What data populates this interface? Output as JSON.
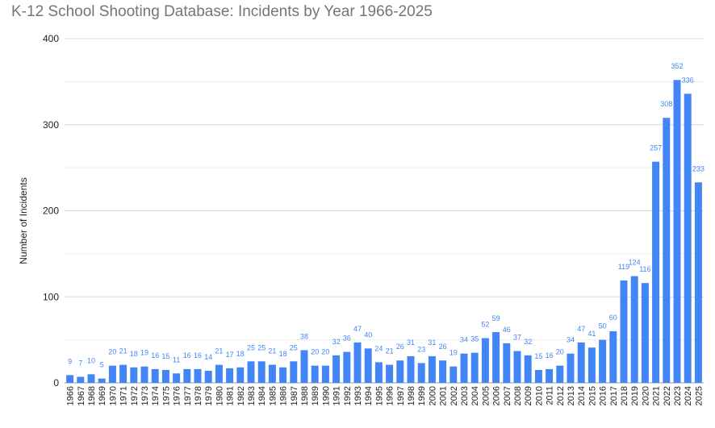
{
  "chart_data": {
    "type": "bar",
    "title": "K-12 School Shooting Database: Incidents by Year 1966-2025",
    "xlabel": "",
    "ylabel": "Number of Incidents",
    "ylim": [
      0,
      400
    ],
    "yticks": [
      0,
      100,
      200,
      300,
      400
    ],
    "grid": true,
    "legend": "none",
    "categories": [
      "1966",
      "1967",
      "1968",
      "1969",
      "1970",
      "1971",
      "1972",
      "1973",
      "1974",
      "1975",
      "1976",
      "1977",
      "1978",
      "1979",
      "1980",
      "1981",
      "1982",
      "1983",
      "1984",
      "1985",
      "1986",
      "1987",
      "1988",
      "1989",
      "1990",
      "1991",
      "1992",
      "1993",
      "1994",
      "1995",
      "1996",
      "1997",
      "1998",
      "1999",
      "2000",
      "2001",
      "2002",
      "2003",
      "2004",
      "2005",
      "2006",
      "2007",
      "2008",
      "2009",
      "2010",
      "2011",
      "2012",
      "2013",
      "2014",
      "2015",
      "2016",
      "2017",
      "2018",
      "2019",
      "2020",
      "2021",
      "2022",
      "2023",
      "2024",
      "2025"
    ],
    "values": [
      9,
      7,
      10,
      5,
      20,
      21,
      18,
      19,
      16,
      15,
      11,
      16,
      16,
      14,
      21,
      17,
      18,
      25,
      25,
      21,
      18,
      25,
      38,
      20,
      20,
      32,
      36,
      47,
      40,
      24,
      21,
      26,
      31,
      23,
      31,
      26,
      19,
      34,
      35,
      52,
      59,
      46,
      37,
      32,
      15,
      16,
      20,
      34,
      47,
      41,
      50,
      60,
      119,
      124,
      116,
      257,
      308,
      352,
      336,
      233
    ]
  },
  "colors": {
    "bar": "#4285f4",
    "data_label": "#4285f4",
    "grid": "#d9d9d9",
    "grid_minor": "#ececec",
    "axis_text": "#222222",
    "title": "#757575"
  }
}
